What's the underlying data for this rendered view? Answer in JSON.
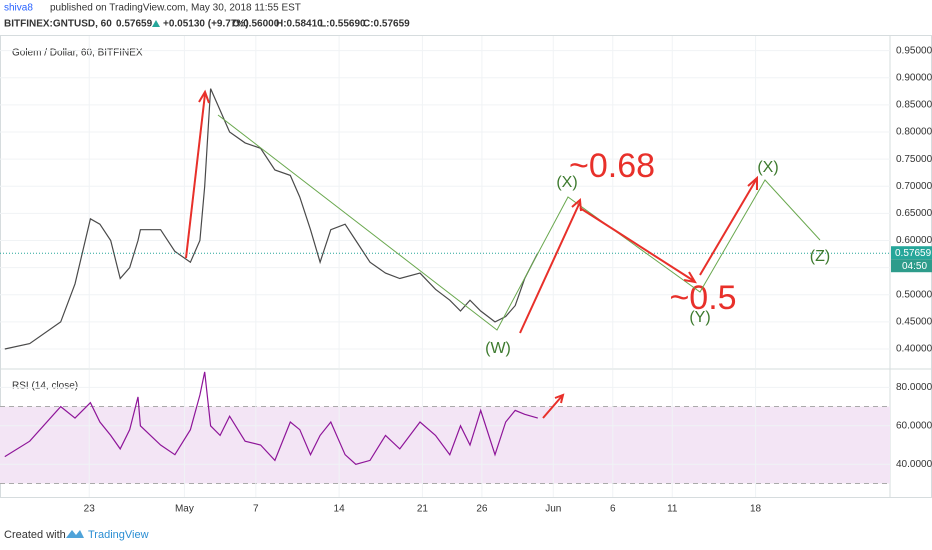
{
  "header": {
    "author": "shiva8",
    "published": "published on TradingView.com, May 30, 2018 11:55 EST",
    "symbol": "BITFINEX:GNTUSD, 60",
    "change": "+0.05130 (+9.77%)",
    "open": "O:0.56000",
    "high": "H:0.58410",
    "low": "L:0.55690",
    "close": "C:0.57659"
  },
  "footer": {
    "created": "Created with",
    "brand": "TradingView"
  },
  "chart_data": [
    {
      "type": "line",
      "title": "Golem / Dollar, 60, BITFINEX",
      "color": "#4a4a4a",
      "x": [
        15.9,
        18.0,
        20.6,
        21.8,
        23.1,
        23.9,
        24.8,
        25.6,
        26.4,
        27.1,
        27.3,
        29.0,
        30.2,
        31.5,
        32.3,
        32.7,
        33.2,
        34.0,
        34.8,
        36.1,
        37.4,
        38.6,
        39.9,
        40.7,
        41.6,
        42.4,
        43.3,
        44.5,
        45.4,
        46.6,
        47.9,
        49.1,
        50.8,
        52.1,
        53.3,
        54.2,
        55.0,
        55.9,
        57.1,
        58.0,
        58.8,
        59.6,
        60.7
      ],
      "values": [
        0.4,
        0.41,
        0.45,
        0.52,
        0.64,
        0.63,
        0.6,
        0.53,
        0.55,
        0.6,
        0.62,
        0.62,
        0.58,
        0.56,
        0.6,
        0.7,
        0.88,
        0.84,
        0.8,
        0.78,
        0.77,
        0.73,
        0.72,
        0.68,
        0.62,
        0.56,
        0.62,
        0.63,
        0.6,
        0.56,
        0.54,
        0.53,
        0.54,
        0.51,
        0.49,
        0.47,
        0.49,
        0.47,
        0.45,
        0.46,
        0.48,
        0.53,
        0.577
      ],
      "xlim": [
        15.5,
        90.3
      ],
      "ylim": [
        0.365,
        0.977
      ],
      "yticks": [
        {
          "value": 0.4,
          "label": "0.40000"
        },
        {
          "value": 0.45,
          "label": "0.45000"
        },
        {
          "value": 0.5,
          "label": "0.50000"
        },
        {
          "value": 0.55,
          "label": "0.55000"
        },
        {
          "value": 0.6,
          "label": "0.60000"
        },
        {
          "value": 0.65,
          "label": "0.65000"
        },
        {
          "value": 0.7,
          "label": "0.70000"
        },
        {
          "value": 0.75,
          "label": "0.75000"
        },
        {
          "value": 0.8,
          "label": "0.80000"
        },
        {
          "value": 0.85,
          "label": "0.85000"
        },
        {
          "value": 0.9,
          "label": "0.90000"
        },
        {
          "value": 0.95,
          "label": "0.95000"
        }
      ],
      "last_price": 0.57659,
      "countdown": "04:50",
      "annotations": [
        "(W)",
        "(X)",
        "~0.68",
        "(Y)",
        "~0.5",
        "(X)",
        "(Z)"
      ]
    },
    {
      "type": "line",
      "title": "RSI (14, close)",
      "color": "#8e1599",
      "x": [
        15.9,
        18.0,
        20.6,
        21.8,
        23.1,
        23.9,
        24.8,
        25.6,
        26.4,
        27.1,
        27.3,
        29.0,
        30.2,
        31.5,
        32.3,
        32.7,
        33.2,
        34.0,
        34.8,
        36.1,
        37.4,
        38.6,
        39.9,
        40.7,
        41.6,
        42.4,
        43.3,
        44.5,
        45.4,
        46.6,
        47.9,
        49.1,
        50.8,
        52.1,
        53.3,
        54.2,
        55.0,
        55.9,
        57.1,
        58.0,
        58.8,
        59.6,
        60.7
      ],
      "values": [
        44,
        52,
        70,
        64,
        72,
        62,
        55,
        48,
        58,
        75,
        60,
        50,
        45,
        58,
        76,
        88,
        60,
        55,
        65,
        52,
        50,
        42,
        62,
        58,
        45,
        55,
        62,
        45,
        40,
        42,
        55,
        48,
        62,
        55,
        45,
        60,
        50,
        68,
        45,
        62,
        68,
        66,
        64
      ],
      "xlim": [
        15.5,
        90.3
      ],
      "ylim": [
        23,
        89
      ],
      "band": [
        30,
        70
      ],
      "yticks": [
        {
          "value": 40,
          "label": "40.0000"
        },
        {
          "value": 60,
          "label": "60.0000"
        },
        {
          "value": 80,
          "label": "80.0000"
        }
      ],
      "xticks": [
        23,
        {
          "value": 31,
          "label": "May"
        },
        {
          "value": 37,
          "label": "7"
        },
        {
          "value": 44,
          "label": "14"
        },
        {
          "value": 51,
          "label": "21"
        },
        {
          "value": 56,
          "label": "26"
        },
        {
          "value": 62,
          "label": "Jun"
        },
        {
          "value": 67,
          "label": "6"
        },
        {
          "value": 72,
          "label": "11"
        },
        {
          "value": 79,
          "label": "18"
        }
      ]
    }
  ]
}
